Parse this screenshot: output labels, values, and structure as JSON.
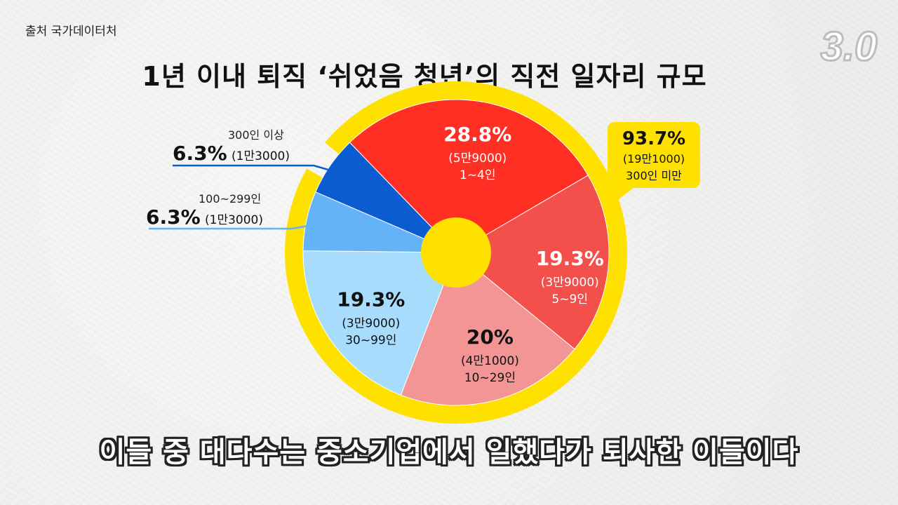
{
  "source": "출처 국가데이터처",
  "title": "1년 이내 퇴직 ‘쉬었음 청년’의 직전 일자리 규모",
  "subtitle": "이들 중 대다수는 중소기업에서 일했다가 퇴사한 이들이다",
  "logo_text": "3.0",
  "chart_data": {
    "type": "pie",
    "slices": [
      {
        "category": "1~4인",
        "value": 28.8,
        "label": "28.8%",
        "count": "(5만9000)",
        "color": "#ff2f23"
      },
      {
        "category": "5~9인",
        "value": 19.3,
        "label": "19.3%",
        "count": "(3만9000)",
        "color": "#f3504b"
      },
      {
        "category": "10~29인",
        "value": 20,
        "label": "20%",
        "count": "(4만1000)",
        "color": "#f49595"
      },
      {
        "category": "30~99인",
        "value": 19.3,
        "label": "19.3%",
        "count": "(3만9000)",
        "color": "#a7dcfd"
      },
      {
        "category": "100~299인",
        "value": 6.3,
        "label": "6.3%",
        "count": "(1만3000)",
        "color": "#64b2f7"
      },
      {
        "category": "300인 이상",
        "value": 6.3,
        "label": "6.3%",
        "count": "(1만3000)",
        "color": "#0b5bd1"
      }
    ],
    "highlight": {
      "label": "93.7%",
      "count": "(19만1000)",
      "category": "300인 미만",
      "color": "#ffe100"
    },
    "center_color": "#ffe100"
  }
}
